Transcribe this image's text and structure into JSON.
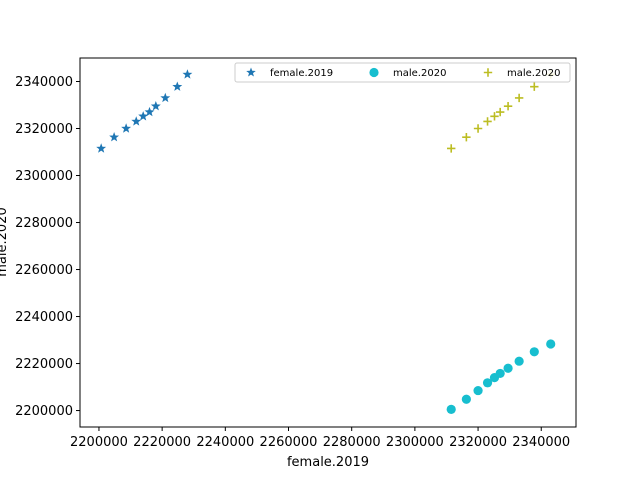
{
  "chart_data": {
    "type": "scatter",
    "xlabel": "female.2019",
    "ylabel": "male.2020",
    "xlim": [
      2194000,
      2351000
    ],
    "ylim": [
      2193000,
      2350000
    ],
    "xticks": [
      2200000,
      2220000,
      2240000,
      2260000,
      2280000,
      2300000,
      2320000,
      2340000
    ],
    "yticks": [
      2200000,
      2220000,
      2240000,
      2260000,
      2280000,
      2300000,
      2320000,
      2340000
    ],
    "legend_placement": "top-right",
    "series": [
      {
        "name": "female.2019",
        "marker": "star",
        "color": "#1f77b4",
        "points": [
          [
            2200700,
            2311500
          ],
          [
            2204800,
            2316300
          ],
          [
            2208600,
            2320000
          ],
          [
            2211800,
            2323000
          ],
          [
            2214000,
            2325200
          ],
          [
            2216000,
            2327000
          ],
          [
            2218000,
            2329500
          ],
          [
            2221000,
            2333000
          ],
          [
            2224800,
            2337800
          ],
          [
            2228000,
            2343000
          ]
        ]
      },
      {
        "name": "male.2020",
        "marker": "circle",
        "color": "#17becf",
        "points": [
          [
            2311500,
            2200500
          ],
          [
            2316300,
            2204800
          ],
          [
            2320000,
            2208500
          ],
          [
            2323000,
            2211800
          ],
          [
            2325200,
            2214000
          ],
          [
            2327000,
            2215800
          ],
          [
            2329500,
            2218000
          ],
          [
            2333000,
            2221000
          ],
          [
            2337800,
            2225000
          ],
          [
            2343000,
            2228300
          ]
        ]
      },
      {
        "name": "male.2020",
        "marker": "plus",
        "color": "#bcbd22",
        "points": [
          [
            2311500,
            2311500
          ],
          [
            2316300,
            2316300
          ],
          [
            2320000,
            2320000
          ],
          [
            2323000,
            2323000
          ],
          [
            2325200,
            2325200
          ],
          [
            2327000,
            2327000
          ],
          [
            2329500,
            2329500
          ],
          [
            2333000,
            2333000
          ],
          [
            2337800,
            2337800
          ],
          [
            2343000,
            2343000
          ]
        ]
      }
    ]
  }
}
